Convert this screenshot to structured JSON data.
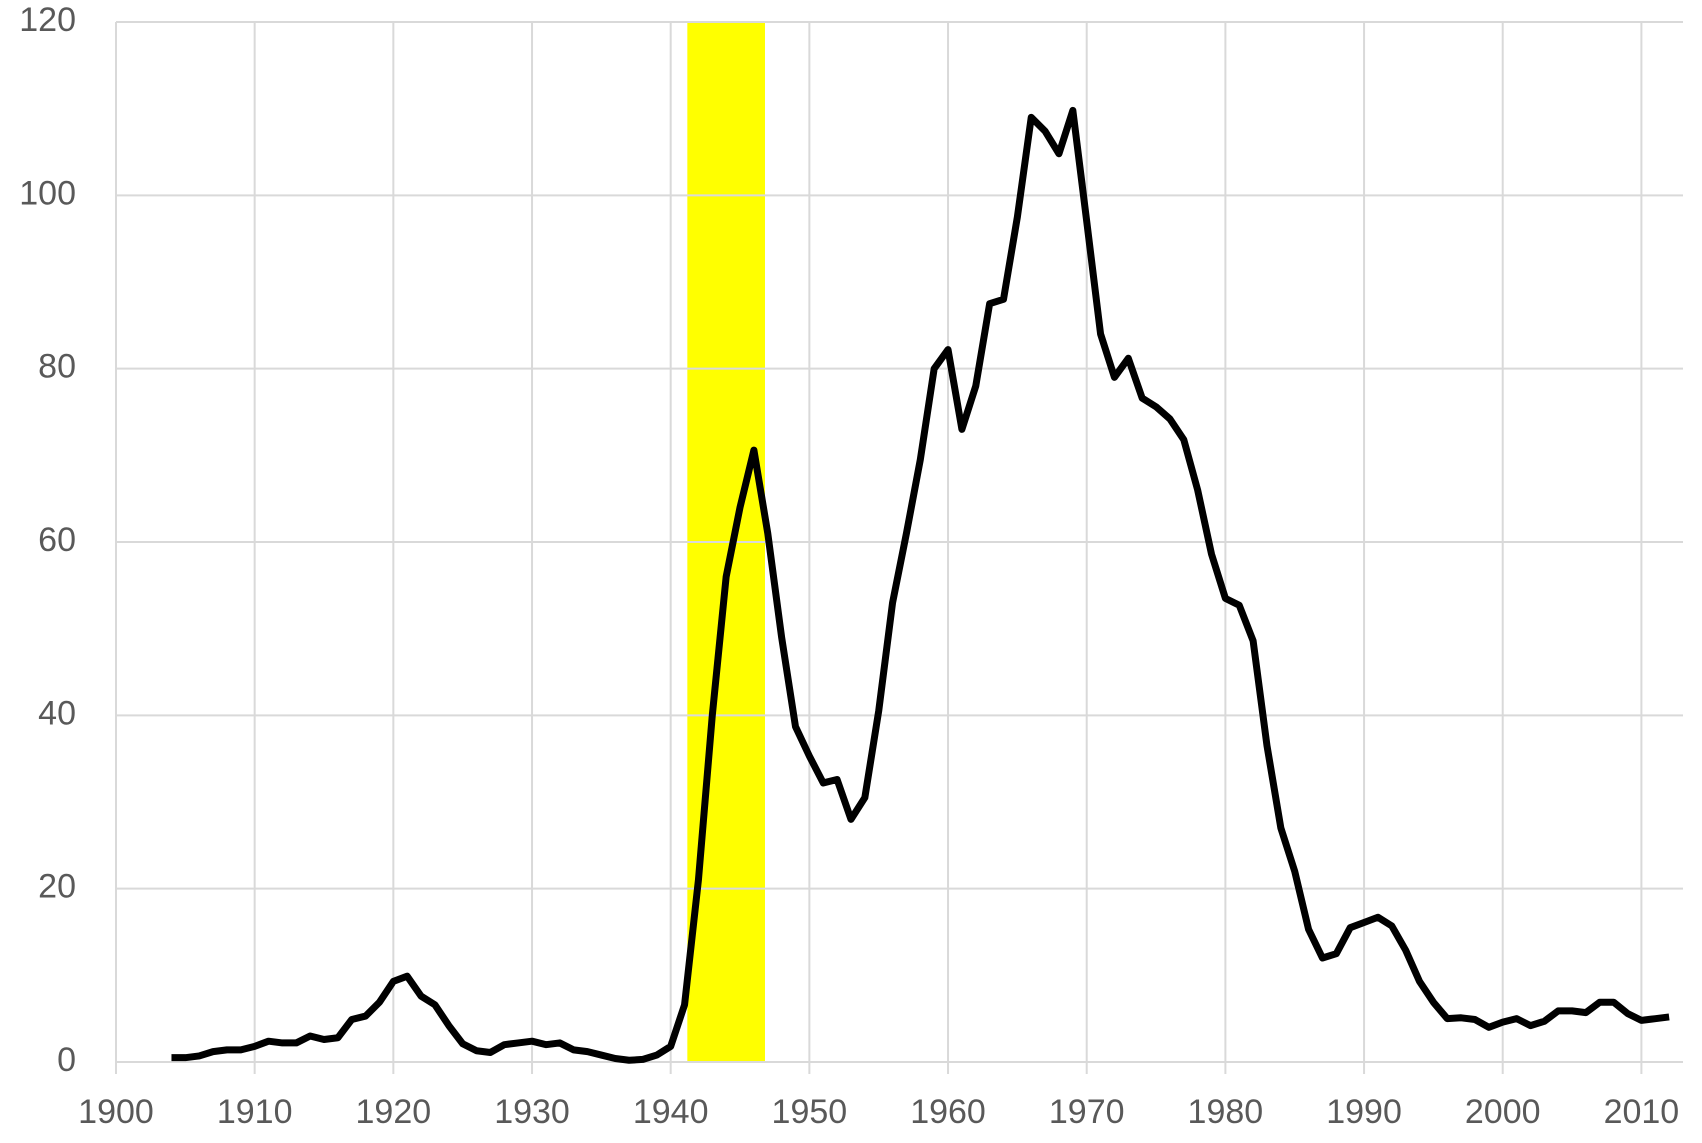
{
  "chart_data": {
    "type": "line",
    "x": [
      1904,
      1905,
      1906,
      1907,
      1908,
      1909,
      1910,
      1911,
      1912,
      1913,
      1914,
      1915,
      1916,
      1917,
      1918,
      1919,
      1920,
      1921,
      1922,
      1923,
      1924,
      1925,
      1926,
      1927,
      1928,
      1929,
      1930,
      1931,
      1932,
      1933,
      1934,
      1935,
      1936,
      1937,
      1938,
      1939,
      1940,
      1941,
      1942,
      1943,
      1944,
      1945,
      1946,
      1947,
      1948,
      1949,
      1950,
      1951,
      1952,
      1953,
      1954,
      1955,
      1956,
      1957,
      1958,
      1959,
      1960,
      1961,
      1962,
      1963,
      1964,
      1965,
      1966,
      1967,
      1968,
      1969,
      1970,
      1971,
      1972,
      1973,
      1974,
      1975,
      1976,
      1977,
      1978,
      1979,
      1980,
      1981,
      1982,
      1983,
      1984,
      1985,
      1986,
      1987,
      1988,
      1989,
      1990,
      1991,
      1992,
      1993,
      1994,
      1995,
      1996,
      1997,
      1998,
      1999,
      2000,
      2001,
      2002,
      2003,
      2004,
      2005,
      2006,
      2007,
      2008,
      2009,
      2010,
      2011,
      2012
    ],
    "series": [
      {
        "color": "#000000",
        "values": [
          0.5,
          0.5,
          0.7,
          1.2,
          1.4,
          1.4,
          1.8,
          2.4,
          2.2,
          2.2,
          3.0,
          2.6,
          2.8,
          4.9,
          5.3,
          6.9,
          9.3,
          9.9,
          7.6,
          6.6,
          4.2,
          2.1,
          1.3,
          1.1,
          2.0,
          2.2,
          2.4,
          2.0,
          2.2,
          1.4,
          1.2,
          0.8,
          0.4,
          0.2,
          0.3,
          0.8,
          1.8,
          6.6,
          21,
          40,
          56,
          64,
          70.6,
          61,
          49,
          38.7,
          35.3,
          32.2,
          32.6,
          28.0,
          30.5,
          40.5,
          53,
          61,
          69.5,
          80,
          82.2,
          73,
          78,
          87.5,
          88,
          97.5,
          109,
          107.4,
          104.8,
          109.8,
          97,
          84,
          79,
          81.2,
          76.6,
          75.6,
          74.2,
          71.8,
          66,
          58.6,
          53.5,
          52.7,
          48.6,
          36.5,
          27,
          22,
          15.3,
          12,
          12.5,
          15.5,
          16.1,
          16.7,
          15.7,
          12.9,
          9.3,
          6.9,
          5.0,
          5.1,
          4.9,
          4.0,
          4.6,
          5.0,
          4.2,
          4.7,
          5.9,
          5.9,
          5.7,
          6.9,
          6.9,
          5.6,
          4.8,
          5.0,
          5.2
        ]
      }
    ],
    "shaded_range": {
      "range": [
        1941.2,
        1946.8
      ],
      "color": "#ffff00"
    },
    "xlim": [
      1900,
      2013
    ],
    "xticks": [
      1900,
      1910,
      1920,
      1930,
      1940,
      1950,
      1960,
      1970,
      1980,
      1990,
      2000,
      2010
    ],
    "ylim": [
      0,
      120
    ],
    "yticks": [
      0,
      20,
      40,
      60,
      80,
      100,
      120
    ],
    "grid": true
  }
}
